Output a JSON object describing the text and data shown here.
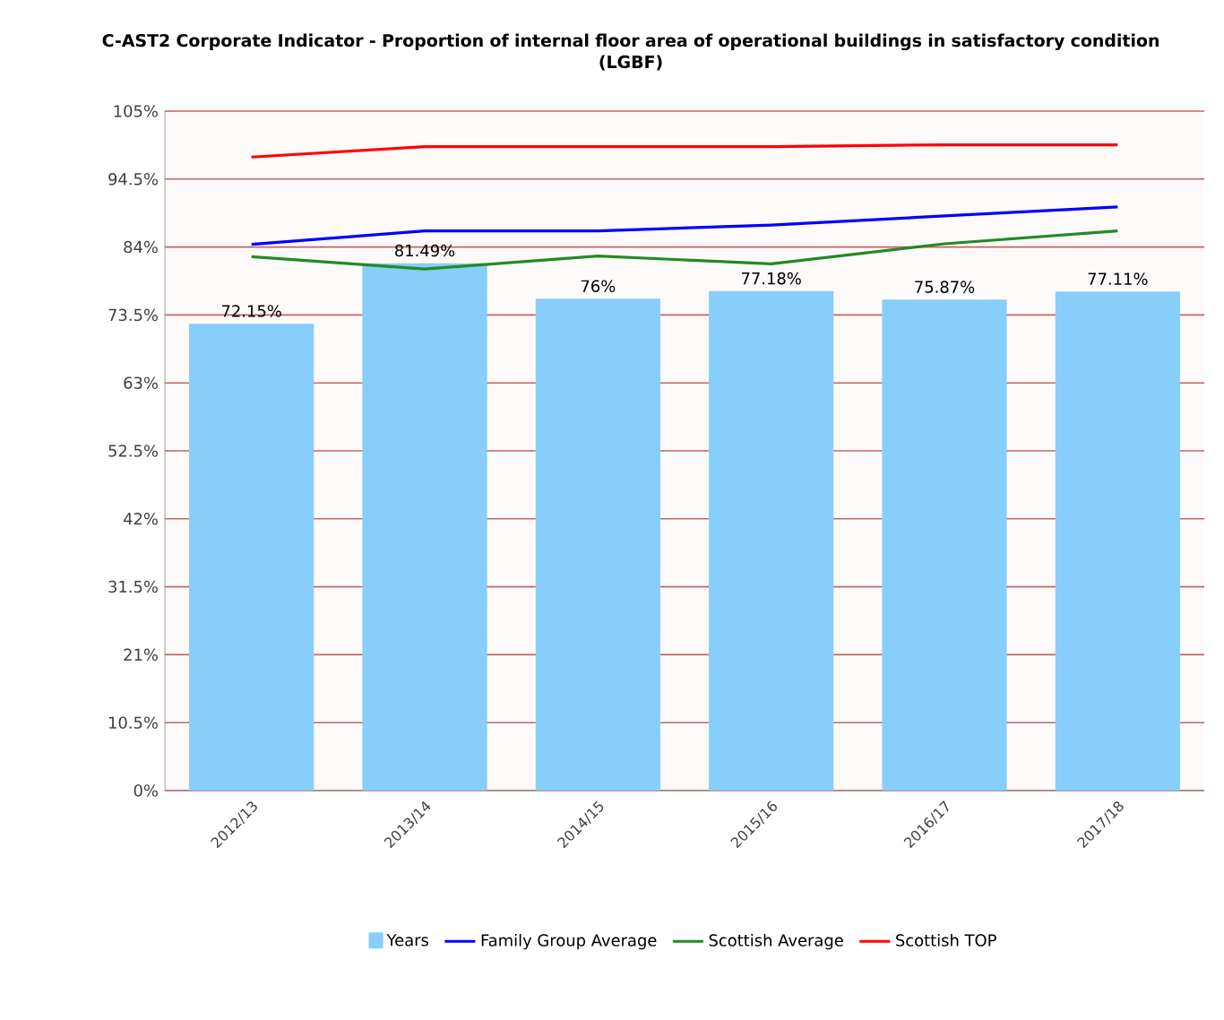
{
  "chart_data": {
    "type": "bar",
    "title": "C-AST2 Corporate Indicator - Proportion of internal floor area of operational buildings in satisfactory condition (LGBF)",
    "categories": [
      "2012/13",
      "2013/14",
      "2014/15",
      "2015/16",
      "2016/17",
      "2017/18"
    ],
    "series": [
      {
        "name": "Years",
        "color": "#87cefa",
        "values": [
          72.15,
          81.49,
          76,
          77.18,
          75.87,
          77.11
        ],
        "value_labels": [
          "72.15%",
          "81.49%",
          "76%",
          "77.18%",
          "75.87%",
          "77.11%"
        ]
      },
      {
        "name": "Family Group Average",
        "type": "line",
        "color": "#0000ff",
        "values": [
          84.4,
          86.5,
          86.5,
          87.4,
          88.8,
          90.2
        ]
      },
      {
        "name": "Scottish Average",
        "type": "line",
        "color": "#228b22",
        "values": [
          82.5,
          80.6,
          82.6,
          81.4,
          84.5,
          86.5
        ]
      },
      {
        "name": "Scottish TOP",
        "type": "line",
        "color": "#ff0000",
        "values": [
          97.9,
          99.5,
          99.5,
          99.5,
          99.8,
          99.8
        ]
      }
    ],
    "ylim": [
      0,
      105
    ],
    "yticks": [
      {
        "value": 0,
        "label": "0%"
      },
      {
        "value": 10.5,
        "label": "10.5%"
      },
      {
        "value": 21,
        "label": "21%"
      },
      {
        "value": 31.5,
        "label": "31.5%"
      },
      {
        "value": 42,
        "label": "42%"
      },
      {
        "value": 52.5,
        "label": "52.5%"
      },
      {
        "value": 63,
        "label": "63%"
      },
      {
        "value": 73.5,
        "label": "73.5%"
      },
      {
        "value": 84,
        "label": "84%"
      },
      {
        "value": 94.5,
        "label": "94.5%"
      },
      {
        "value": 105,
        "label": "105%"
      }
    ],
    "grid": "y",
    "legend": "bottom",
    "marker": "none"
  }
}
